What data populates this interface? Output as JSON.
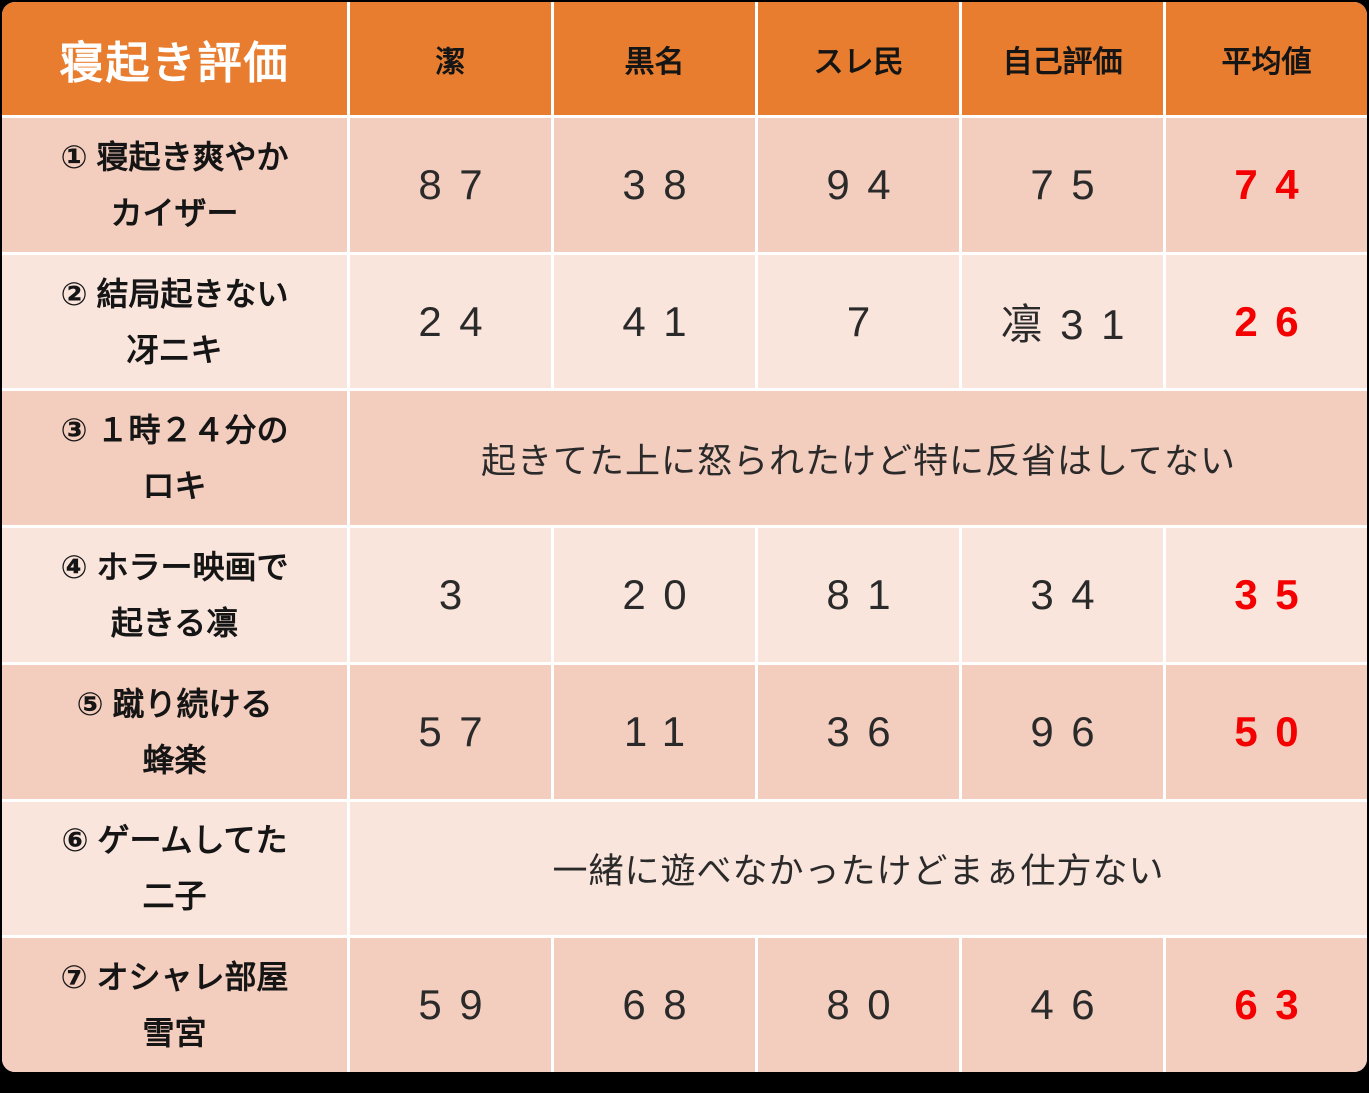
{
  "table": {
    "title": "寝起き評価",
    "columns": [
      "潔",
      "黒名",
      "スレ民",
      "自己評価",
      "平均値"
    ],
    "rows": [
      {
        "label": "① 寝起き爽やか\nカイザー",
        "type": "scores",
        "band": "dark",
        "values": [
          "87",
          "38",
          "94",
          "75"
        ],
        "average": "74"
      },
      {
        "label": "② 結局起きない\n冴ニキ",
        "type": "scores",
        "band": "light",
        "values": [
          "24",
          "41",
          "7",
          "凛31"
        ],
        "average": "26"
      },
      {
        "label": "③ １時２４分の\nロキ",
        "type": "note",
        "band": "dark",
        "note": "起きてた上に怒られたけど特に反省はしてない"
      },
      {
        "label": "④ ホラー映画で\n起きる凛",
        "type": "scores",
        "band": "light",
        "values": [
          "3",
          "20",
          "81",
          "34"
        ],
        "average": "35"
      },
      {
        "label": "⑤ 蹴り続ける\n蜂楽",
        "type": "scores",
        "band": "dark",
        "values": [
          "57",
          "11",
          "36",
          "96"
        ],
        "average": "50"
      },
      {
        "label": "⑥ ゲームしてた\n二子",
        "type": "note",
        "band": "light",
        "note": "一緒に遊べなかったけどまぁ仕方ない"
      },
      {
        "label": "⑦ オシャレ部屋\n雪宮",
        "type": "scores",
        "band": "dark",
        "values": [
          "59",
          "68",
          "80",
          "46"
        ],
        "average": "63"
      }
    ],
    "colors": {
      "accent": "#E87D2F",
      "band_dark": "#F3CDBE",
      "band_light": "#FAE5DD",
      "average_red": "#F40000",
      "gridline": "#FFFFFF",
      "frame": "#000000"
    }
  },
  "chart_data": {
    "type": "table",
    "title": "寝起き評価",
    "columns": [
      "潔",
      "黒名",
      "スレ民",
      "自己評価",
      "平均値"
    ],
    "rows": [
      {
        "label": "① 寝起き爽やかカイザー",
        "潔": 87,
        "黒名": 38,
        "スレ民": 94,
        "自己評価": 75,
        "平均値": 74
      },
      {
        "label": "② 結局起きない冴ニキ",
        "潔": 24,
        "黒名": 41,
        "スレ民": 7,
        "自己評価": "凛31",
        "平均値": 26
      },
      {
        "label": "③ １時２４分のロキ",
        "note": "起きてた上に怒られたけど特に反省はしてない"
      },
      {
        "label": "④ ホラー映画で起きる凛",
        "潔": 3,
        "黒名": 20,
        "スレ民": 81,
        "自己評価": 34,
        "平均値": 35
      },
      {
        "label": "⑤ 蹴り続ける蜂楽",
        "潔": 57,
        "黒名": 11,
        "スレ民": 36,
        "自己評価": 96,
        "平均値": 50
      },
      {
        "label": "⑥ ゲームしてた二子",
        "note": "一緒に遊べなかったけどまぁ仕方ない"
      },
      {
        "label": "⑦ オシャレ部屋雪宮",
        "潔": 59,
        "黒名": 68,
        "スレ民": 80,
        "自己評価": 46,
        "平均値": 63
      }
    ],
    "layout": {
      "header_color": "accent-orange",
      "banded_rows": true,
      "average_column_color": "red"
    }
  }
}
